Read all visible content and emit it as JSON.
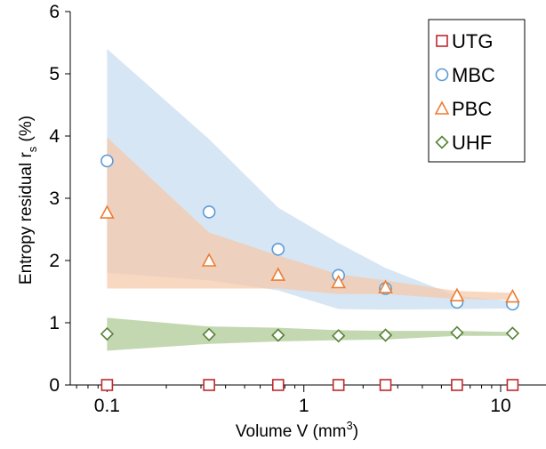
{
  "chart_data": {
    "type": "scatter",
    "title": "",
    "xlabel": "Volume V (mm",
    "xlabel_sup": "3",
    "xlabel_end": ")",
    "ylabel": "Entropy residual r",
    "ylabel_sub": "s",
    "ylabel_end": " (%)",
    "xscale": "log",
    "xlim": [
      0.065,
      17
    ],
    "ylim": [
      0,
      6
    ],
    "x_ticks": [
      0.1,
      1,
      10
    ],
    "x_tick_labels": [
      "0.1",
      "1",
      "10"
    ],
    "y_ticks": [
      0,
      1,
      2,
      3,
      4,
      5,
      6
    ],
    "y_tick_labels": [
      "0",
      "1",
      "2",
      "3",
      "4",
      "5",
      "6"
    ],
    "grid": false,
    "legend_position": "top-right",
    "x": [
      0.1,
      0.33,
      0.74,
      1.5,
      2.6,
      6.0,
      11.5
    ],
    "series": [
      {
        "name": "UTG",
        "marker": "square",
        "color": "#c0282d",
        "values": [
          0,
          0,
          0,
          0,
          0,
          0,
          0
        ]
      },
      {
        "name": "MBC",
        "marker": "circle",
        "color": "#5b9bd5",
        "band_color": "#c6dbf0",
        "values": [
          3.6,
          2.78,
          2.18,
          1.76,
          1.55,
          1.33,
          1.3
        ],
        "band_upper": [
          5.4,
          3.95,
          2.85,
          2.28,
          1.88,
          1.43,
          1.35
        ],
        "band_lower": [
          1.8,
          1.68,
          1.52,
          1.22,
          1.21,
          1.22,
          1.23
        ]
      },
      {
        "name": "PBC",
        "marker": "triangle",
        "color": "#ed7d31",
        "band_color": "#f7c8a7",
        "values": [
          2.77,
          2.0,
          1.77,
          1.65,
          1.57,
          1.44,
          1.42
        ],
        "band_upper": [
          3.98,
          2.45,
          2.08,
          1.78,
          1.68,
          1.51,
          1.48
        ],
        "band_lower": [
          1.55,
          1.55,
          1.55,
          1.46,
          1.46,
          1.38,
          1.37
        ]
      },
      {
        "name": "UHF",
        "marker": "diamond",
        "color": "#548235",
        "band_color": "#a9c78f",
        "values": [
          0.82,
          0.81,
          0.8,
          0.79,
          0.8,
          0.84,
          0.83
        ],
        "band_upper": [
          1.08,
          0.94,
          0.92,
          0.88,
          0.87,
          0.87,
          0.85
        ],
        "band_lower": [
          0.55,
          0.66,
          0.7,
          0.72,
          0.73,
          0.79,
          0.79
        ]
      }
    ]
  }
}
